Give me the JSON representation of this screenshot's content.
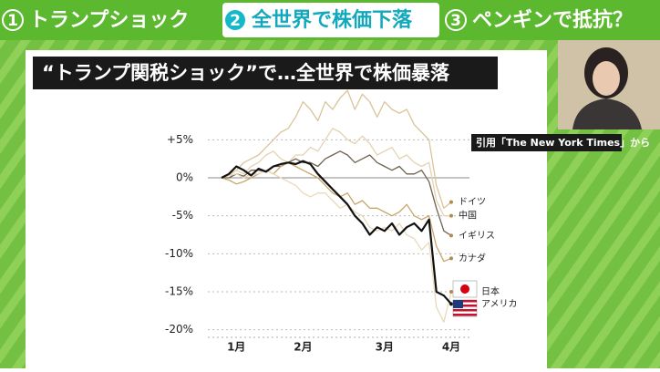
{
  "header": {
    "tabs": [
      {
        "number": "1",
        "label": "トランプショック"
      },
      {
        "number": "2",
        "label": "全世界で株価下落"
      },
      {
        "number": "3",
        "label": "ペンギンで抵抗？"
      }
    ]
  },
  "chart_data": {
    "type": "line",
    "title": "“トランプ関税ショック”で…全世界で株価暴落",
    "source": "引用「The New York Times」から",
    "categories": [
      null,
      null,
      "1月",
      null,
      null,
      null,
      null,
      null,
      null,
      null,
      null,
      "2月",
      null,
      null,
      null,
      null,
      null,
      null,
      null,
      null,
      null,
      null,
      "3月",
      null,
      null,
      null,
      null,
      null,
      null,
      null,
      null,
      "4月"
    ],
    "ylim": [
      -21,
      9
    ],
    "yticks": [
      {
        "value": 5,
        "label": "+5%"
      },
      {
        "value": 0,
        "label": "0%"
      },
      {
        "value": -5,
        "label": "-5%"
      },
      {
        "value": -10,
        "label": "-10%"
      },
      {
        "value": -15,
        "label": "-15%"
      },
      {
        "value": -20,
        "label": "-20%"
      }
    ],
    "grid": true,
    "series": [
      {
        "name": "ドイツ",
        "color": "#d9c49a",
        "values": [
          0,
          0.5,
          1,
          2,
          2.5,
          3,
          4,
          5,
          6,
          6.5,
          8,
          10,
          9,
          7.5,
          10,
          9,
          10.5,
          11.5,
          9,
          11,
          10,
          8,
          10,
          9,
          8.5,
          9,
          7,
          6,
          5,
          -1,
          -4,
          -3.2
        ]
      },
      {
        "name": "中国",
        "color": "#e3d3b0",
        "values": [
          0,
          0.3,
          1,
          0.5,
          1.5,
          2,
          3,
          3.5,
          2.5,
          2,
          3,
          3,
          4,
          3.5,
          5,
          6.5,
          6,
          5,
          4.5,
          5.5,
          4.5,
          3,
          3.5,
          4,
          2.5,
          3,
          2,
          1.5,
          2,
          -3,
          -5,
          -5
        ]
      },
      {
        "name": "イギリス",
        "color": "#6e6250",
        "values": [
          0,
          0,
          0.5,
          0.2,
          1,
          1,
          0.8,
          1.5,
          1.5,
          2,
          2.5,
          2,
          2,
          1.5,
          2.5,
          3,
          3.5,
          3,
          2,
          2.5,
          3,
          2,
          1.5,
          1,
          1.5,
          0.5,
          0.5,
          1,
          -0.5,
          -4,
          -7,
          -7.6
        ]
      },
      {
        "name": "カナダ",
        "color": "#c8a66a",
        "values": [
          0,
          -0.3,
          -0.8,
          -0.5,
          0,
          0.5,
          1,
          0.5,
          1.5,
          2,
          1.5,
          1,
          0.5,
          0,
          -1,
          -2,
          -2.5,
          -2,
          -3.5,
          -3,
          -4,
          -4,
          -4.5,
          -5,
          -4.5,
          -3.5,
          -5,
          -5.5,
          -5,
          -9,
          -11,
          -10.6
        ]
      },
      {
        "name": "日本",
        "color": "#ead9b8",
        "values": [
          0,
          0.3,
          0.5,
          0,
          0.5,
          0.5,
          1,
          0.5,
          0,
          -0.5,
          -1,
          -2,
          -2.5,
          -2,
          -2,
          -3,
          -4,
          -3.5,
          -4.5,
          -5,
          -6.5,
          -7,
          -6.5,
          -7,
          -6,
          -7.5,
          -8,
          -9.5,
          -8.5,
          -17,
          -19,
          -15
        ]
      },
      {
        "name": "アメリカ",
        "color": "#111111",
        "values": [
          0,
          0.5,
          1.5,
          1,
          0.3,
          1.2,
          0.8,
          1.5,
          1.8,
          2,
          1.8,
          2.2,
          1.8,
          0.5,
          -0.5,
          -1.5,
          -2.5,
          -3.5,
          -5,
          -6,
          -7.5,
          -6.5,
          -7,
          -6,
          -7.5,
          -6.5,
          -6,
          -7,
          -5.5,
          -15,
          -15.5,
          -16.6
        ]
      }
    ]
  }
}
